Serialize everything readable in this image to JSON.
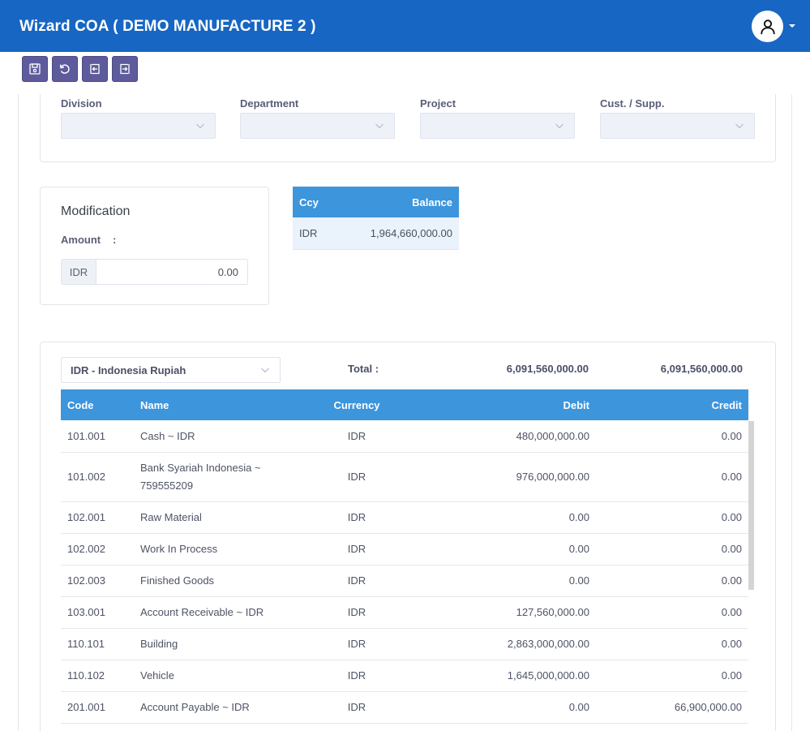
{
  "header": {
    "title": "Wizard COA ( DEMO MANUFACTURE 2 )"
  },
  "toolbar": {
    "buttons": [
      "save-icon",
      "refresh-icon",
      "exit-left-icon",
      "exit-right-icon"
    ]
  },
  "filters": [
    {
      "label": "Division",
      "value": ""
    },
    {
      "label": "Department",
      "value": ""
    },
    {
      "label": "Project",
      "value": ""
    },
    {
      "label": "Cust. / Supp.",
      "value": ""
    }
  ],
  "modification": {
    "title": "Modification",
    "amount_label": "Amount",
    "colon": ":",
    "currency": "IDR",
    "amount": "0.00"
  },
  "balance": {
    "headers": {
      "ccy": "Ccy",
      "balance": "Balance"
    },
    "rows": [
      {
        "ccy": "IDR",
        "balance": "1,964,660,000.00"
      }
    ]
  },
  "coa": {
    "currency_selected": "IDR - Indonesia Rupiah",
    "total_label": "Total :",
    "total_debit": "6,091,560,000.00",
    "total_credit": "6,091,560,000.00",
    "headers": {
      "code": "Code",
      "name": "Name",
      "currency": "Currency",
      "debit": "Debit",
      "credit": "Credit"
    },
    "rows": [
      {
        "code": "101.001",
        "name": "Cash ~ IDR",
        "currency": "IDR",
        "debit": "480,000,000.00",
        "credit": "0.00"
      },
      {
        "code": "101.002",
        "name": "Bank Syariah Indonesia ~ 759555209",
        "currency": "IDR",
        "debit": "976,000,000.00",
        "credit": "0.00"
      },
      {
        "code": "102.001",
        "name": "Raw Material",
        "currency": "IDR",
        "debit": "0.00",
        "credit": "0.00"
      },
      {
        "code": "102.002",
        "name": "Work In Process",
        "currency": "IDR",
        "debit": "0.00",
        "credit": "0.00"
      },
      {
        "code": "102.003",
        "name": "Finished Goods",
        "currency": "IDR",
        "debit": "0.00",
        "credit": "0.00"
      },
      {
        "code": "103.001",
        "name": "Account Receivable ~ IDR",
        "currency": "IDR",
        "debit": "127,560,000.00",
        "credit": "0.00"
      },
      {
        "code": "110.101",
        "name": "Building",
        "currency": "IDR",
        "debit": "2,863,000,000.00",
        "credit": "0.00"
      },
      {
        "code": "110.102",
        "name": "Vehicle",
        "currency": "IDR",
        "debit": "1,645,000,000.00",
        "credit": "0.00"
      },
      {
        "code": "201.001",
        "name": "Account Payable ~ IDR",
        "currency": "IDR",
        "debit": "0.00",
        "credit": "66,900,000.00"
      }
    ]
  },
  "colors": {
    "header_bg": "#1766c3",
    "toolbar_btn": "#5e5b9c",
    "table_header": "#3d95dc",
    "select_bg": "#eef2f8"
  }
}
